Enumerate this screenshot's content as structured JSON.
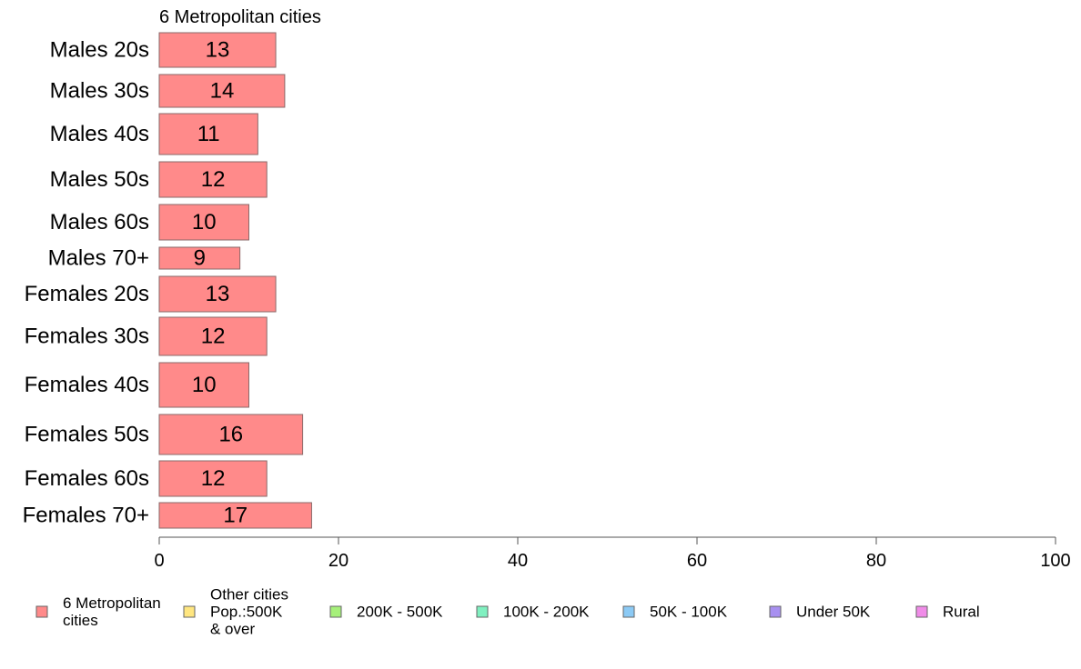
{
  "chart_data": {
    "type": "bar",
    "orientation": "horizontal",
    "title": "6 Metropolitan cities",
    "categories": [
      "Males 20s",
      "Males 30s",
      "Males 40s",
      "Males 50s",
      "Males 60s",
      "Males 70+",
      "Females 20s",
      "Females 30s",
      "Females 40s",
      "Females 50s",
      "Females 60s",
      "Females 70+"
    ],
    "series": [
      {
        "name": "6 Metropolitan cities",
        "color": "#ff8a8a",
        "values": [
          13,
          14,
          11,
          12,
          10,
          9,
          13,
          12,
          10,
          16,
          12,
          17
        ]
      }
    ],
    "data_labels": [
      "13",
      "14",
      "11",
      "12",
      "10",
      "9",
      "13",
      "12",
      "10",
      "16",
      "12",
      "17"
    ],
    "xlim": [
      0,
      100
    ],
    "x_ticks": [
      0,
      20,
      40,
      60,
      80,
      100
    ],
    "x_tick_labels": [
      "0",
      "20",
      "40",
      "60",
      "80",
      "100"
    ],
    "grid": false,
    "legend_position": "bottom",
    "legend": [
      {
        "lines": [
          "6 Metropolitan",
          " cities"
        ],
        "color": "#ff8a8a"
      },
      {
        "lines": [
          "Other cities",
          "Pop.:500K",
          " & over"
        ],
        "color": "#ffe680"
      },
      {
        "lines": [
          "200K - 500K"
        ],
        "color": "#a6f07a"
      },
      {
        "lines": [
          "100K - 200K"
        ],
        "color": "#80f0c0"
      },
      {
        "lines": [
          "50K - 100K"
        ],
        "color": "#8ccaf5"
      },
      {
        "lines": [
          "Under 50K"
        ],
        "color": "#a890f0"
      },
      {
        "lines": [
          "Rural"
        ],
        "color": "#f08ce8"
      }
    ]
  }
}
